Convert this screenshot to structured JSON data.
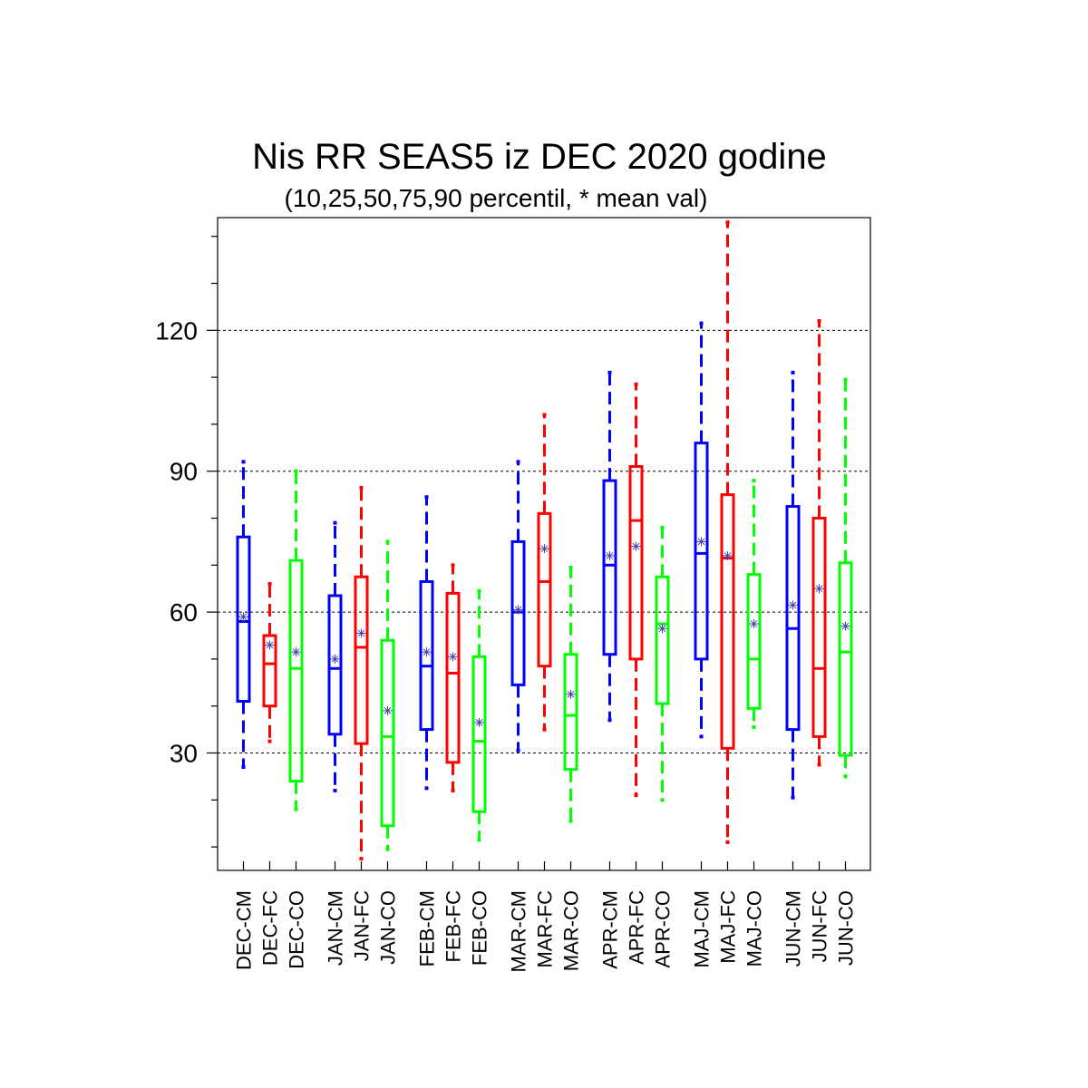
{
  "chart_data": {
    "type": "boxplot",
    "title": "Nis RR SEAS5 iz DEC 2020 godine",
    "subtitle": "(10,25,50,75,90 percentil, * mean val)",
    "xlabel": "",
    "ylabel": "",
    "ylim": [
      5,
      144
    ],
    "yticks": [
      30,
      60,
      90,
      120
    ],
    "grid": true,
    "categories": [
      "DEC-CM",
      "DEC-FC",
      "DEC-CO",
      "JAN-CM",
      "JAN-FC",
      "JAN-CO",
      "FEB-CM",
      "FEB-FC",
      "FEB-CO",
      "MAR-CM",
      "MAR-FC",
      "MAR-CO",
      "APR-CM",
      "APR-FC",
      "APR-CO",
      "MAJ-CM",
      "MAJ-FC",
      "MAJ-CO",
      "JUN-CM",
      "JUN-FC",
      "JUN-CO"
    ],
    "colors": {
      "CM": "#0000ff",
      "FC": "#ff0000",
      "CO": "#00ff00",
      "mean": "#4444aa"
    },
    "boxes": [
      {
        "label": "DEC-CM",
        "p10": 27,
        "p25": 41,
        "p50": 58,
        "p75": 76,
        "p90": 92,
        "mean": 59
      },
      {
        "label": "DEC-FC",
        "p10": 32.5,
        "p25": 40,
        "p50": 49,
        "p75": 55,
        "p90": 66,
        "mean": 53
      },
      {
        "label": "DEC-CO",
        "p10": 18,
        "p25": 24,
        "p50": 48,
        "p75": 71,
        "p90": 90,
        "mean": 51.5
      },
      {
        "label": "JAN-CM",
        "p10": 22,
        "p25": 34,
        "p50": 48,
        "p75": 63.5,
        "p90": 79,
        "mean": 50
      },
      {
        "label": "JAN-FC",
        "p10": 7.5,
        "p25": 32,
        "p50": 52.5,
        "p75": 67.5,
        "p90": 86.5,
        "mean": 55.5
      },
      {
        "label": "JAN-CO",
        "p10": 9.5,
        "p25": 14.5,
        "p50": 33.5,
        "p75": 54,
        "p90": 75,
        "mean": 39
      },
      {
        "label": "FEB-CM",
        "p10": 22.5,
        "p25": 35,
        "p50": 48.5,
        "p75": 66.5,
        "p90": 84.5,
        "mean": 51.5
      },
      {
        "label": "FEB-FC",
        "p10": 22,
        "p25": 28,
        "p50": 47,
        "p75": 64,
        "p90": 70,
        "mean": 50.5
      },
      {
        "label": "FEB-CO",
        "p10": 11.5,
        "p25": 17.5,
        "p50": 32.5,
        "p75": 50.5,
        "p90": 64.5,
        "mean": 36.5
      },
      {
        "label": "MAR-CM",
        "p10": 30.5,
        "p25": 44.5,
        "p50": 60,
        "p75": 75,
        "p90": 92,
        "mean": 60.5
      },
      {
        "label": "MAR-FC",
        "p10": 35,
        "p25": 48.5,
        "p50": 66.5,
        "p75": 81,
        "p90": 102,
        "mean": 73.5
      },
      {
        "label": "MAR-CO",
        "p10": 15.5,
        "p25": 26.5,
        "p50": 38,
        "p75": 51,
        "p90": 69.5,
        "mean": 42.5
      },
      {
        "label": "APR-CM",
        "p10": 37,
        "p25": 51,
        "p50": 70,
        "p75": 88,
        "p90": 111,
        "mean": 72
      },
      {
        "label": "APR-FC",
        "p10": 21,
        "p25": 50,
        "p50": 79.5,
        "p75": 91,
        "p90": 108.5,
        "mean": 74
      },
      {
        "label": "APR-CO",
        "p10": 20,
        "p25": 40.5,
        "p50": 57.5,
        "p75": 67.5,
        "p90": 78,
        "mean": 56.5
      },
      {
        "label": "MAJ-CM",
        "p10": 33.5,
        "p25": 50,
        "p50": 72.5,
        "p75": 96,
        "p90": 121.5,
        "mean": 75
      },
      {
        "label": "MAJ-FC",
        "p10": 11,
        "p25": 31,
        "p50": 71.5,
        "p75": 85,
        "p90": 143,
        "mean": 72
      },
      {
        "label": "MAJ-CO",
        "p10": 35.5,
        "p25": 39.5,
        "p50": 50,
        "p75": 68,
        "p90": 88,
        "mean": 57.5
      },
      {
        "label": "JUN-CM",
        "p10": 20.5,
        "p25": 35,
        "p50": 56.5,
        "p75": 82.5,
        "p90": 111,
        "mean": 61.5
      },
      {
        "label": "JUN-FC",
        "p10": 27.5,
        "p25": 33.5,
        "p50": 48,
        "p75": 80,
        "p90": 122,
        "mean": 65
      },
      {
        "label": "JUN-CO",
        "p10": 25,
        "p25": 29.5,
        "p50": 51.5,
        "p75": 70.5,
        "p90": 109.5,
        "mean": 57
      }
    ]
  }
}
